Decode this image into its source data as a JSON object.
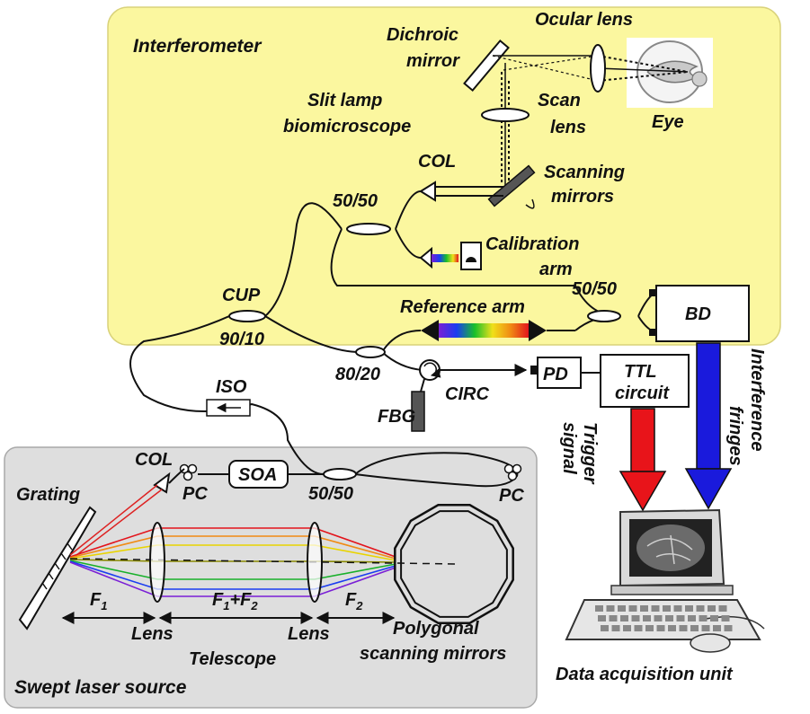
{
  "labels": {
    "interferometer": "Interferometer",
    "dichroic": "Dichroic",
    "mirror": "mirror",
    "ocular_lens": "Ocular lens",
    "eye": "Eye",
    "slit_lamp": "Slit lamp",
    "biomicroscope": "biomicroscope",
    "scan": "Scan",
    "lens": "lens",
    "col": "COL",
    "scanning": "Scanning",
    "mirrors": "mirrors",
    "split_50_50": "50/50",
    "calibration": "Calibration",
    "arm": "arm",
    "cup": "CUP",
    "reference_arm": "Reference arm",
    "bd": "BD",
    "split_90_10": "90/10",
    "split_80_20": "80/20",
    "pd": "PD",
    "ttl": "TTL",
    "circuit": "circuit",
    "circ": "CIRC",
    "fbg": "FBG",
    "iso": "ISO",
    "soa": "SOA",
    "pc": "PC",
    "grating": "Grating",
    "trigger": "Trigger",
    "signal": "signal",
    "interference": "Interference",
    "fringes": "fringes",
    "sub_1": "1",
    "sub_2": "2",
    "lens_cap": "Lens",
    "telescope": "Telescope",
    "polygonal": "Polygonal",
    "scanning_mirrors": "scanning mirrors",
    "swept_laser_source": "Swept laser source",
    "data_acquisition_unit": "Data acquisition unit"
  },
  "colors": {
    "interferometer_panel": "#fbf79f",
    "laser_panel": "#dedede",
    "trigger_arrow": "#e8141a",
    "fringes_arrow": "#1a1adc"
  },
  "icons": [
    "eye-icon",
    "computer-icon",
    "circulator"
  ]
}
